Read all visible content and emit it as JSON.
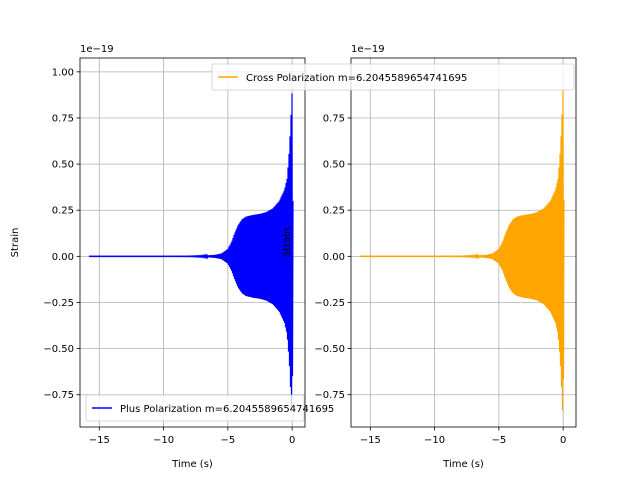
{
  "chart_data": [
    {
      "type": "line",
      "title": "",
      "xlabel": "Time (s)",
      "ylabel": "Strain",
      "offset_label": "1e−19",
      "xlim": [
        -16.5,
        1.0
      ],
      "ylim": [
        -0.925,
        1.075
      ],
      "x_ticks": [
        -15,
        -10,
        -5,
        0
      ],
      "x_tick_labels": [
        "−15",
        "−10",
        "−5",
        "0"
      ],
      "y_ticks": [
        -0.75,
        -0.5,
        -0.25,
        0.0,
        0.25,
        0.5,
        0.75,
        1.0
      ],
      "y_tick_labels": [
        "−0.75",
        "−0.50",
        "−0.25",
        "0.00",
        "0.25",
        "0.50",
        "0.75",
        "1.00"
      ],
      "grid": true,
      "legend_position": "lower-left",
      "series": [
        {
          "name": "Plus Polarization m=6.2045589654741695",
          "color": "#0000ff",
          "envelope": {
            "x": [
              -15.8,
              -14,
              -12,
              -10,
              -8,
              -7,
              -6,
              -5.5,
              -5,
              -4.7,
              -4.5,
              -4.2,
              -3.9,
              -3.6,
              -3.3,
              -3.0,
              -2.5,
              -2.0,
              -1.5,
              -1.0,
              -0.6,
              -0.4,
              -0.3,
              -0.2,
              -0.1,
              0.0,
              0.1
            ],
            "upper": [
              0.0,
              0.0,
              0.0,
              0.0,
              0.001,
              0.003,
              0.008,
              0.015,
              0.04,
              0.08,
              0.12,
              0.17,
              0.2,
              0.215,
              0.22,
              0.225,
              0.23,
              0.24,
              0.26,
              0.3,
              0.36,
              0.42,
              0.5,
              0.6,
              0.75,
              0.9,
              0.0
            ],
            "lower": [
              0.0,
              0.0,
              0.0,
              0.0,
              -0.001,
              -0.003,
              -0.008,
              -0.015,
              -0.04,
              -0.08,
              -0.12,
              -0.17,
              -0.2,
              -0.215,
              -0.22,
              -0.225,
              -0.23,
              -0.24,
              -0.26,
              -0.3,
              -0.36,
              -0.42,
              -0.5,
              -0.6,
              -0.75,
              -0.9,
              0.0
            ]
          }
        }
      ]
    },
    {
      "type": "line",
      "title": "",
      "xlabel": "Time (s)",
      "ylabel": "Strain",
      "offset_label": "1e−19",
      "xlim": [
        -16.5,
        1.0
      ],
      "ylim": [
        -0.925,
        1.075
      ],
      "x_ticks": [
        -15,
        -10,
        -5,
        0
      ],
      "x_tick_labels": [
        "−15",
        "−10",
        "−5",
        "0"
      ],
      "y_ticks": [
        -0.75,
        -0.5,
        -0.25,
        0.0,
        0.25,
        0.5,
        0.75
      ],
      "y_tick_labels": [
        "−0.75",
        "−0.50",
        "−0.25",
        "0.00",
        "0.25",
        "0.50",
        "0.75"
      ],
      "grid": true,
      "legend_position": "top",
      "series": [
        {
          "name": "Cross Polarization m=6.2045589654741695",
          "color": "#ffa500",
          "envelope": {
            "x": [
              -15.8,
              -14,
              -12,
              -10,
              -8,
              -7,
              -6,
              -5.5,
              -5,
              -4.7,
              -4.5,
              -4.2,
              -3.9,
              -3.6,
              -3.3,
              -3.0,
              -2.5,
              -2.0,
              -1.5,
              -1.0,
              -0.6,
              -0.4,
              -0.3,
              -0.2,
              -0.1,
              0.0,
              0.1
            ],
            "upper": [
              0.0,
              0.0,
              0.0,
              0.0,
              0.001,
              0.003,
              0.008,
              0.015,
              0.04,
              0.08,
              0.12,
              0.17,
              0.2,
              0.215,
              0.22,
              0.225,
              0.23,
              0.24,
              0.26,
              0.3,
              0.36,
              0.42,
              0.5,
              0.6,
              0.75,
              0.92,
              0.0
            ],
            "lower": [
              0.0,
              0.0,
              0.0,
              0.0,
              -0.001,
              -0.003,
              -0.008,
              -0.015,
              -0.04,
              -0.08,
              -0.12,
              -0.17,
              -0.2,
              -0.215,
              -0.22,
              -0.225,
              -0.23,
              -0.24,
              -0.26,
              -0.3,
              -0.36,
              -0.42,
              -0.5,
              -0.6,
              -0.75,
              -0.92,
              0.0
            ]
          }
        }
      ]
    }
  ]
}
